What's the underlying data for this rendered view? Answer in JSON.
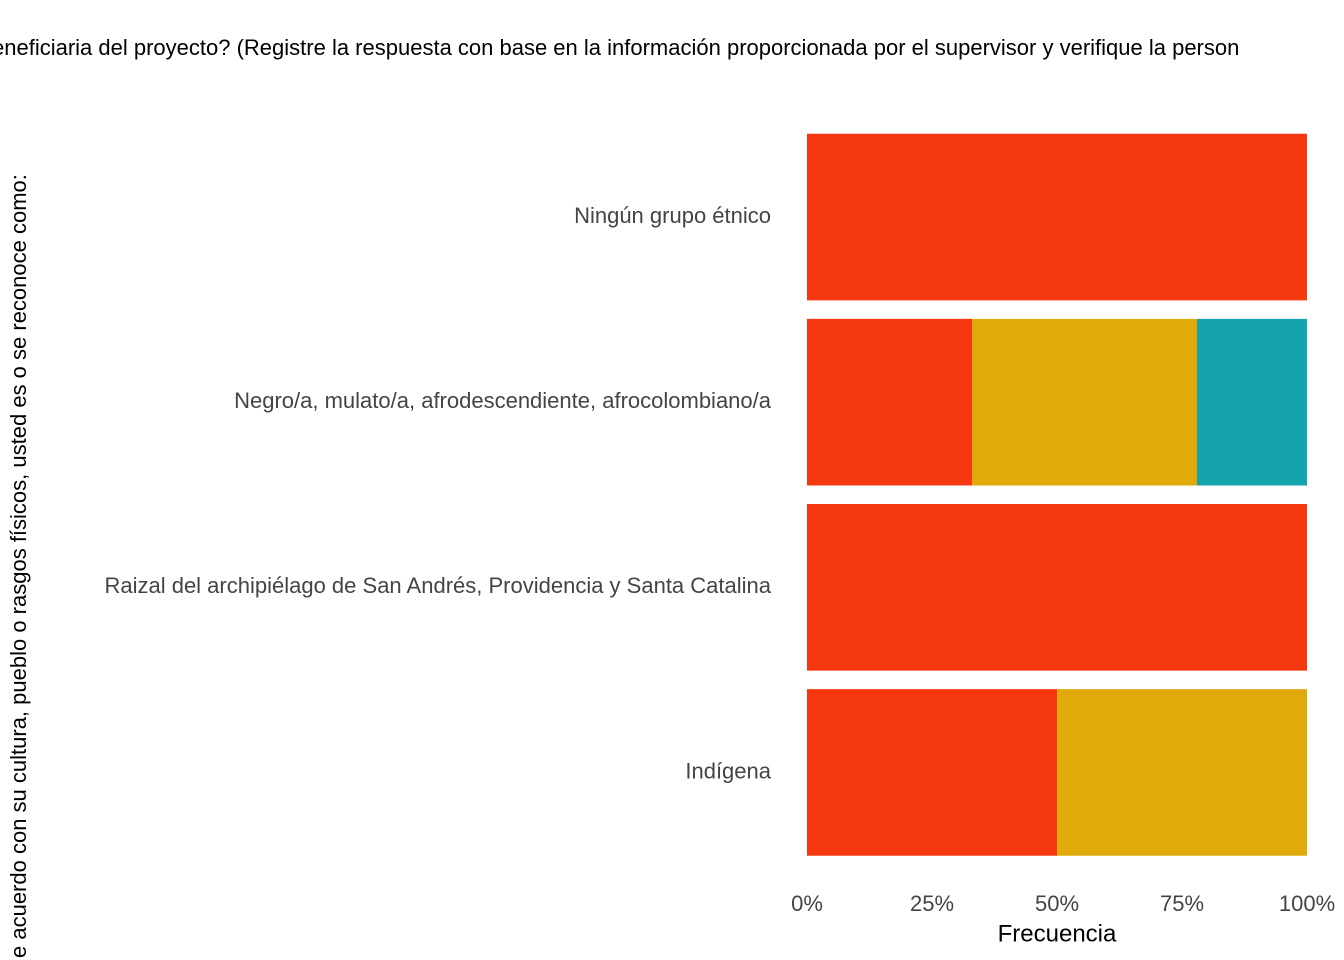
{
  "chart_data": {
    "type": "stacked-bar-horizontal",
    "title": "eneficiaria del proyecto? (Registre la respuesta con base en la información proporcionada por el supervisor y verifique la person",
    "y_label": "e acuerdo con su cultura, pueblo o rasgos físicos, usted es o se reconoce como:",
    "x_label": "Frecuencia",
    "categories": [
      "Ningún grupo étnico",
      "Negro/a, mulato/a, afrodescendiente, afrocolombiano/a",
      "Raizal del archipiélago de San Andrés, Providencia y Santa Catalina",
      "Indígena"
    ],
    "series": [
      {
        "color": "#f5380f",
        "values": [
          100,
          33,
          100,
          50
        ]
      },
      {
        "color": "#e0aa0a",
        "values": [
          0,
          45,
          0,
          50
        ]
      },
      {
        "color": "#15a3ae",
        "values": [
          0,
          22,
          0,
          0
        ]
      }
    ],
    "xlim": [
      0,
      100
    ],
    "xticks": [
      {
        "value": 0,
        "label": "0%"
      },
      {
        "value": 25,
        "label": "25%"
      },
      {
        "value": 50,
        "label": "50%"
      },
      {
        "value": 75,
        "label": "75%"
      },
      {
        "value": 100,
        "label": "100%"
      }
    ],
    "grid": false
  }
}
